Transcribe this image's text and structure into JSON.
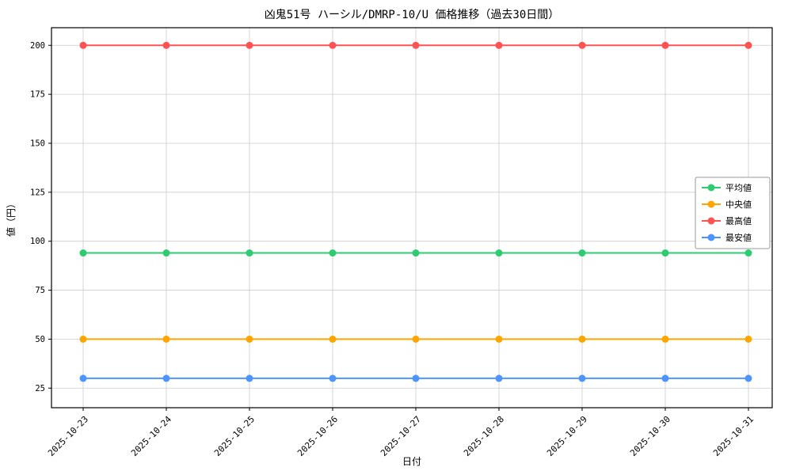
{
  "chart_data": {
    "type": "line",
    "title": "凶鬼51号 ハーシル/DMRP-10/U 価格推移（過去30日間）",
    "xlabel": "日付",
    "ylabel": "値（円）",
    "x": [
      "2025-10-23",
      "2025-10-24",
      "2025-10-25",
      "2025-10-26",
      "2025-10-27",
      "2025-10-28",
      "2025-10-29",
      "2025-10-30",
      "2025-10-31"
    ],
    "yticks": [
      25,
      50,
      75,
      100,
      125,
      150,
      175,
      200
    ],
    "ylim": [
      15,
      209
    ],
    "grid": true,
    "legend_position": "center-right",
    "series": [
      {
        "name": "平均値",
        "color": "#2ecc71",
        "values": [
          94,
          94,
          94,
          94,
          94,
          94,
          94,
          94,
          94
        ]
      },
      {
        "name": "中央値",
        "color": "#ffa500",
        "values": [
          50,
          50,
          50,
          50,
          50,
          50,
          50,
          50,
          50
        ]
      },
      {
        "name": "最高値",
        "color": "#ff5252",
        "values": [
          200,
          200,
          200,
          200,
          200,
          200,
          200,
          200,
          200
        ]
      },
      {
        "name": "最安値",
        "color": "#4d94ff",
        "values": [
          30,
          30,
          30,
          30,
          30,
          30,
          30,
          30,
          30
        ]
      }
    ],
    "colors": {
      "grid": "#cccccc",
      "axis": "#000000",
      "legend_border": "#999999",
      "background": "#ffffff"
    }
  }
}
